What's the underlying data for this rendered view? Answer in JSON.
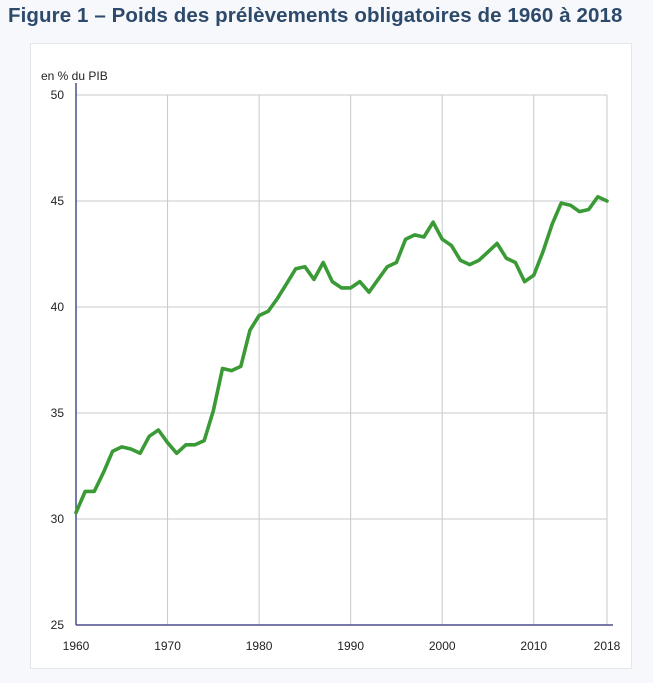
{
  "page": {
    "title": "Figure 1 – Poids des prélèvements obligatoires de 1960 à 2018"
  },
  "colors": {
    "line": "#3a9a35",
    "grid": "#c6c9cd",
    "axis": "#4a4d8a",
    "title": "#2d4a6b"
  },
  "chart_data": {
    "type": "line",
    "title": "Figure 1 – Poids des prélèvements obligatoires de 1960 à 2018",
    "ylabel": "en % du PIB",
    "xlabel": "",
    "xlim": [
      1960,
      2018
    ],
    "ylim": [
      25,
      50
    ],
    "x_ticks": [
      1960,
      1970,
      1980,
      1990,
      2000,
      2010,
      2018
    ],
    "x_tick_labels": [
      "1960",
      "1970",
      "1980",
      "1990",
      "2000",
      "2010",
      "2018"
    ],
    "y_ticks": [
      25,
      30,
      35,
      40,
      45,
      50
    ],
    "y_tick_labels": [
      "25",
      "30",
      "35",
      "40",
      "45",
      "50"
    ],
    "grid": true,
    "series": [
      {
        "name": "Prélèvements obligatoires",
        "x": [
          1960,
          1961,
          1962,
          1963,
          1964,
          1965,
          1966,
          1967,
          1968,
          1969,
          1970,
          1971,
          1972,
          1973,
          1974,
          1975,
          1976,
          1977,
          1978,
          1979,
          1980,
          1981,
          1982,
          1983,
          1984,
          1985,
          1986,
          1987,
          1988,
          1989,
          1990,
          1991,
          1992,
          1993,
          1994,
          1995,
          1996,
          1997,
          1998,
          1999,
          2000,
          2001,
          2002,
          2003,
          2004,
          2005,
          2006,
          2007,
          2008,
          2009,
          2010,
          2011,
          2012,
          2013,
          2014,
          2015,
          2016,
          2017,
          2018
        ],
        "values": [
          30.3,
          31.3,
          31.3,
          32.2,
          33.2,
          33.4,
          33.3,
          33.1,
          33.9,
          34.2,
          33.6,
          33.1,
          33.5,
          33.5,
          33.7,
          35.1,
          37.1,
          37.0,
          37.2,
          38.9,
          39.6,
          39.8,
          40.4,
          41.1,
          41.8,
          41.9,
          41.3,
          42.1,
          41.2,
          40.9,
          40.9,
          41.2,
          40.7,
          41.3,
          41.9,
          42.1,
          43.2,
          43.4,
          43.3,
          44.0,
          43.2,
          42.9,
          42.2,
          42.0,
          42.2,
          42.6,
          43.0,
          42.3,
          42.1,
          41.2,
          41.5,
          42.6,
          43.9,
          44.9,
          44.8,
          44.5,
          44.6,
          45.2,
          45.0
        ]
      }
    ]
  }
}
